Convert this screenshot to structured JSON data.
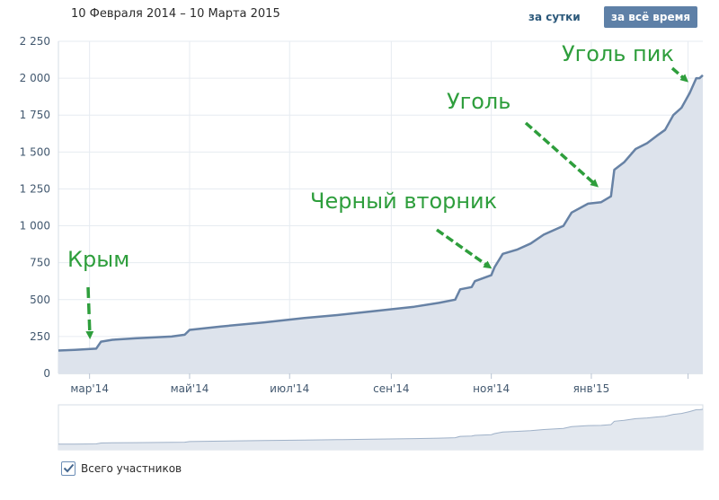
{
  "header": {
    "date_range": "10 Февраля 2014 – 10 Марта 2015",
    "btn_day": "за сутки",
    "btn_all": "за всё время",
    "btn_all_active": true
  },
  "legend": {
    "label": "Всего участников",
    "checked": true
  },
  "colors": {
    "line": "#6782a5",
    "fill": "#dde3ec",
    "grid": "#e6ebf1",
    "annotation": "#2e9e3c",
    "axis_text": "#42586f"
  },
  "chart_data": {
    "type": "area",
    "x_start": "2014-02-10",
    "x_end": "2015-03-10",
    "ylim": [
      0,
      2250
    ],
    "y_ticks": [
      {
        "value": 0,
        "label": "0"
      },
      {
        "value": 250,
        "label": "250"
      },
      {
        "value": 500,
        "label": "500"
      },
      {
        "value": 750,
        "label": "750"
      },
      {
        "value": 1000,
        "label": "1 000"
      },
      {
        "value": 1250,
        "label": "1 250"
      },
      {
        "value": 1500,
        "label": "1 500"
      },
      {
        "value": 1750,
        "label": "1 750"
      },
      {
        "value": 2000,
        "label": "2 000"
      },
      {
        "value": 2250,
        "label": "2 250"
      }
    ],
    "x_ticks": [
      {
        "date": "2014-03-01",
        "label": "мар'14"
      },
      {
        "date": "2014-05-01",
        "label": "май'14"
      },
      {
        "date": "2014-07-01",
        "label": "июл'14"
      },
      {
        "date": "2014-09-01",
        "label": "сен'14"
      },
      {
        "date": "2014-11-01",
        "label": "ноя'14"
      },
      {
        "date": "2015-01-01",
        "label": "янв'15"
      },
      {
        "date": "2015-03-01",
        "label": ""
      }
    ],
    "grid": true,
    "series": [
      {
        "name": "Всего участников",
        "points": [
          [
            "2014-02-10",
            155
          ],
          [
            "2014-02-20",
            160
          ],
          [
            "2014-03-05",
            168
          ],
          [
            "2014-03-08",
            215
          ],
          [
            "2014-03-15",
            228
          ],
          [
            "2014-03-29",
            238
          ],
          [
            "2014-04-20",
            250
          ],
          [
            "2014-04-28",
            262
          ],
          [
            "2014-05-01",
            295
          ],
          [
            "2014-05-20",
            318
          ],
          [
            "2014-06-15",
            345
          ],
          [
            "2014-07-10",
            375
          ],
          [
            "2014-07-30",
            395
          ],
          [
            "2014-08-20",
            420
          ],
          [
            "2014-09-15",
            452
          ],
          [
            "2014-09-30",
            478
          ],
          [
            "2014-10-10",
            500
          ],
          [
            "2014-10-13",
            570
          ],
          [
            "2014-10-20",
            585
          ],
          [
            "2014-10-22",
            625
          ],
          [
            "2014-11-01",
            665
          ],
          [
            "2014-11-03",
            720
          ],
          [
            "2014-11-08",
            810
          ],
          [
            "2014-11-17",
            840
          ],
          [
            "2014-11-25",
            880
          ],
          [
            "2014-12-03",
            940
          ],
          [
            "2014-12-15",
            1000
          ],
          [
            "2014-12-20",
            1090
          ],
          [
            "2014-12-30",
            1150
          ],
          [
            "2015-01-07",
            1160
          ],
          [
            "2015-01-13",
            1200
          ],
          [
            "2015-01-15",
            1380
          ],
          [
            "2015-01-21",
            1430
          ],
          [
            "2015-01-28",
            1520
          ],
          [
            "2015-02-04",
            1560
          ],
          [
            "2015-02-10",
            1610
          ],
          [
            "2015-02-15",
            1650
          ],
          [
            "2015-02-20",
            1750
          ],
          [
            "2015-02-25",
            1800
          ],
          [
            "2015-03-02",
            1900
          ],
          [
            "2015-03-06",
            2000
          ],
          [
            "2015-03-08",
            2000
          ],
          [
            "2015-03-10",
            2020
          ]
        ]
      }
    ],
    "annotations": [
      {
        "text": "Крым",
        "date": "2014-03-05"
      },
      {
        "text": "Черный вторник",
        "date": "2014-10-30"
      },
      {
        "text": "Уголь",
        "date": "2015-01-13"
      },
      {
        "text": "Уголь пик",
        "date": "2015-03-06"
      }
    ]
  }
}
